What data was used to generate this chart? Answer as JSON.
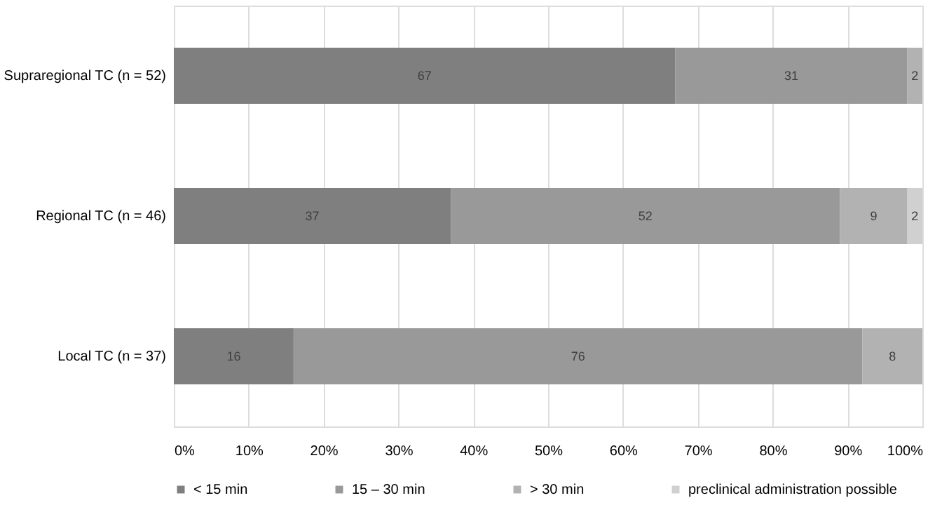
{
  "chart_data": {
    "type": "bar",
    "orientation": "horizontal",
    "stacked": true,
    "categories": [
      "Supraregional TC (n = 52)",
      "Regional TC (n = 46)",
      "Local TC (n = 37)"
    ],
    "series": [
      {
        "name": "< 15 min",
        "color": "#7f7f7f",
        "values": [
          67,
          37,
          16
        ]
      },
      {
        "name": "15 – 30 min",
        "color": "#999999",
        "values": [
          31,
          52,
          76
        ]
      },
      {
        "name": "> 30 min",
        "color": "#b2b2b2",
        "values": [
          2,
          9,
          8
        ]
      },
      {
        "name": "preclinical administration possible",
        "color": "#d0d0d0",
        "values": [
          null,
          2,
          null
        ]
      }
    ],
    "xlim": [
      0,
      100
    ],
    "xticks": [
      {
        "value": 0,
        "label": "0%"
      },
      {
        "value": 10,
        "label": "10%"
      },
      {
        "value": 20,
        "label": "20%"
      },
      {
        "value": 30,
        "label": "30%"
      },
      {
        "value": 40,
        "label": "40%"
      },
      {
        "value": 50,
        "label": "50%"
      },
      {
        "value": 60,
        "label": "60%"
      },
      {
        "value": 70,
        "label": "70%"
      },
      {
        "value": 80,
        "label": "80%"
      },
      {
        "value": 90,
        "label": "90%"
      },
      {
        "value": 100,
        "label": "100%"
      }
    ],
    "data_labels": true,
    "grid": "x",
    "legend": "bottom"
  }
}
